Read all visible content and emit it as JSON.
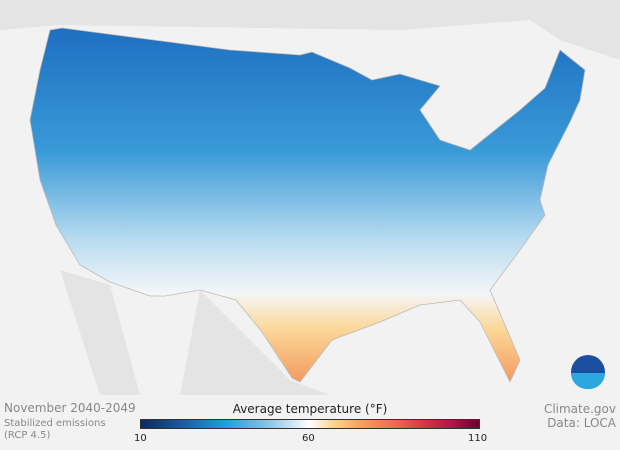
{
  "map": {
    "period": "November 2040-2049",
    "scenario_line1": "Stabilized emissions",
    "scenario_line2": "(RCP 4.5)",
    "credit_line1": "Climate.gov",
    "credit_line2": "Data: LOCA",
    "logo_text": "NOAA"
  },
  "legend": {
    "title": "Average temperature (°F)",
    "min": "10",
    "mid": "60",
    "max": "110",
    "colors": [
      "#0a2a5c",
      "#1ba0dc",
      "#ffffff",
      "#fdd58a",
      "#ee6a50",
      "#6a0030"
    ]
  }
}
